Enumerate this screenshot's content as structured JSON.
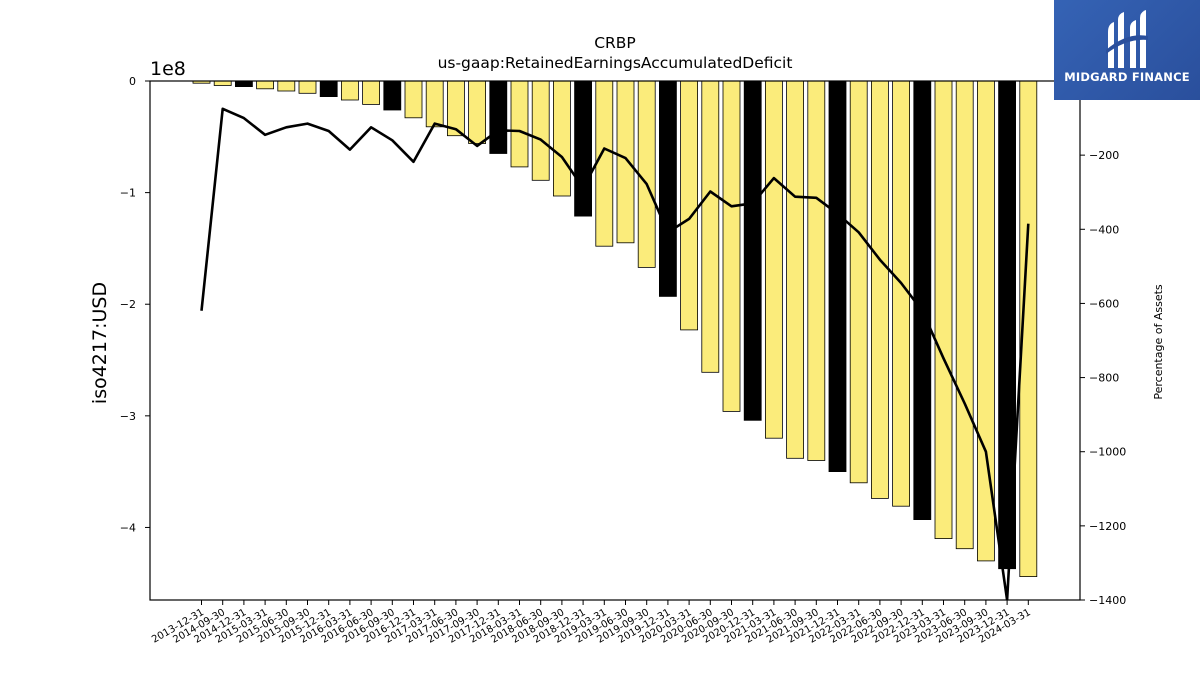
{
  "chart_data": {
    "type": "bar",
    "title": "CRBP",
    "subtitle": "us-gaap:RetainedEarningsAccumulatedDeficit",
    "ylabel": "iso4217:USD",
    "y_offset_label": "1e8",
    "y2label": "Percentage of Assets",
    "ylim": [
      -4.65,
      0
    ],
    "y_ticks": [
      0,
      -1,
      -2,
      -3,
      -4
    ],
    "y2lim": [
      -1400,
      0
    ],
    "y2_ticks": [
      -200,
      -400,
      -600,
      -800,
      -1000,
      -1200,
      -1400
    ],
    "categories": [
      "2013-12-31",
      "2014-09-30",
      "2014-12-31",
      "2015-03-31",
      "2015-06-30",
      "2015-09-30",
      "2015-12-31",
      "2016-03-31",
      "2016-06-30",
      "2016-09-30",
      "2016-12-31",
      "2017-03-31",
      "2017-06-30",
      "2017-09-30",
      "2017-12-31",
      "2018-03-31",
      "2018-06-30",
      "2018-09-30",
      "2018-12-31",
      "2019-03-31",
      "2019-06-30",
      "2019-09-30",
      "2019-12-31",
      "2020-03-31",
      "2020-06-30",
      "2020-09-30",
      "2020-12-31",
      "2021-03-31",
      "2021-06-30",
      "2021-09-30",
      "2021-12-31",
      "2022-03-31",
      "2022-06-30",
      "2022-09-30",
      "2022-12-31",
      "2023-03-31",
      "2023-06-30",
      "2023-09-30",
      "2023-12-31",
      "2024-03-31"
    ],
    "series": [
      {
        "values": [
          -0.02,
          -0.04,
          -0.05,
          -0.07,
          -0.09,
          -0.11,
          -0.14,
          -0.17,
          -0.21,
          -0.26,
          -0.33,
          -0.41,
          -0.49,
          -0.56,
          -0.65,
          -0.77,
          -0.89,
          -1.03,
          -1.21,
          -1.48,
          -1.45,
          -1.67,
          -1.93,
          -2.23,
          -2.61,
          -2.96,
          -3.04,
          -3.2,
          -3.38,
          -3.4,
          -3.5,
          -3.6,
          -3.74,
          -3.81,
          -3.93,
          -4.1,
          -4.19,
          -4.3,
          -4.37,
          -4.44
        ],
        "highlight": [
          false,
          false,
          true,
          false,
          false,
          false,
          true,
          false,
          false,
          true,
          false,
          false,
          false,
          false,
          true,
          false,
          false,
          false,
          true,
          false,
          false,
          false,
          true,
          false,
          false,
          false,
          true,
          false,
          false,
          false,
          true,
          false,
          false,
          false,
          true,
          false,
          false,
          false,
          true,
          false
        ]
      },
      {
        "axis": "right",
        "type": "line",
        "values": [
          -620,
          -75,
          -100,
          -145,
          -125,
          -115,
          -135,
          -185,
          -125,
          -160,
          -218,
          -115,
          -130,
          -175,
          -133,
          -135,
          -158,
          -205,
          -288,
          -182,
          -208,
          -278,
          -408,
          -372,
          -298,
          -338,
          -330,
          -262,
          -312,
          -315,
          -358,
          -408,
          -482,
          -545,
          -620,
          -748,
          -870,
          -1000,
          -1400,
          -385
        ]
      }
    ],
    "colors": {
      "bar": "#fbec7b",
      "bar_highlight": "#000000",
      "line": "#000000"
    }
  },
  "logo": {
    "name": "MIDGARD FINANCE"
  }
}
